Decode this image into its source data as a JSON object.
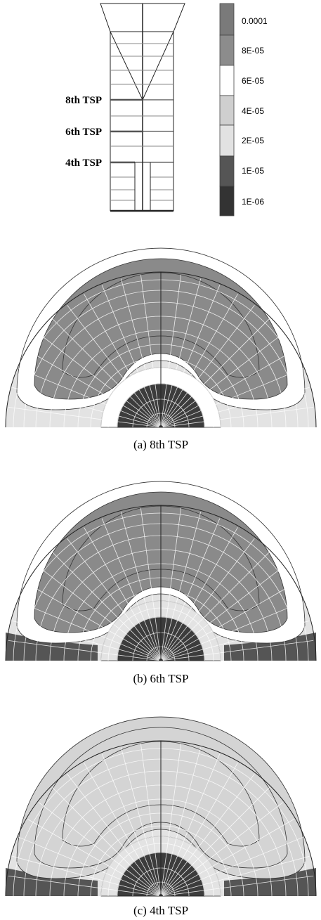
{
  "schematic": {
    "labels": [
      "8th TSP",
      "6th TSP",
      "4th TSP"
    ]
  },
  "legend": {
    "labels": [
      "0.0001",
      "8E-05",
      "6E-05",
      "4E-05",
      "2E-05",
      "1E-05",
      "1E-06"
    ]
  },
  "panels": [
    {
      "caption": "(a)  8th  TSP"
    },
    {
      "caption": "(b)  6th  TSP"
    },
    {
      "caption": "(c)  4th  TSP"
    }
  ]
}
